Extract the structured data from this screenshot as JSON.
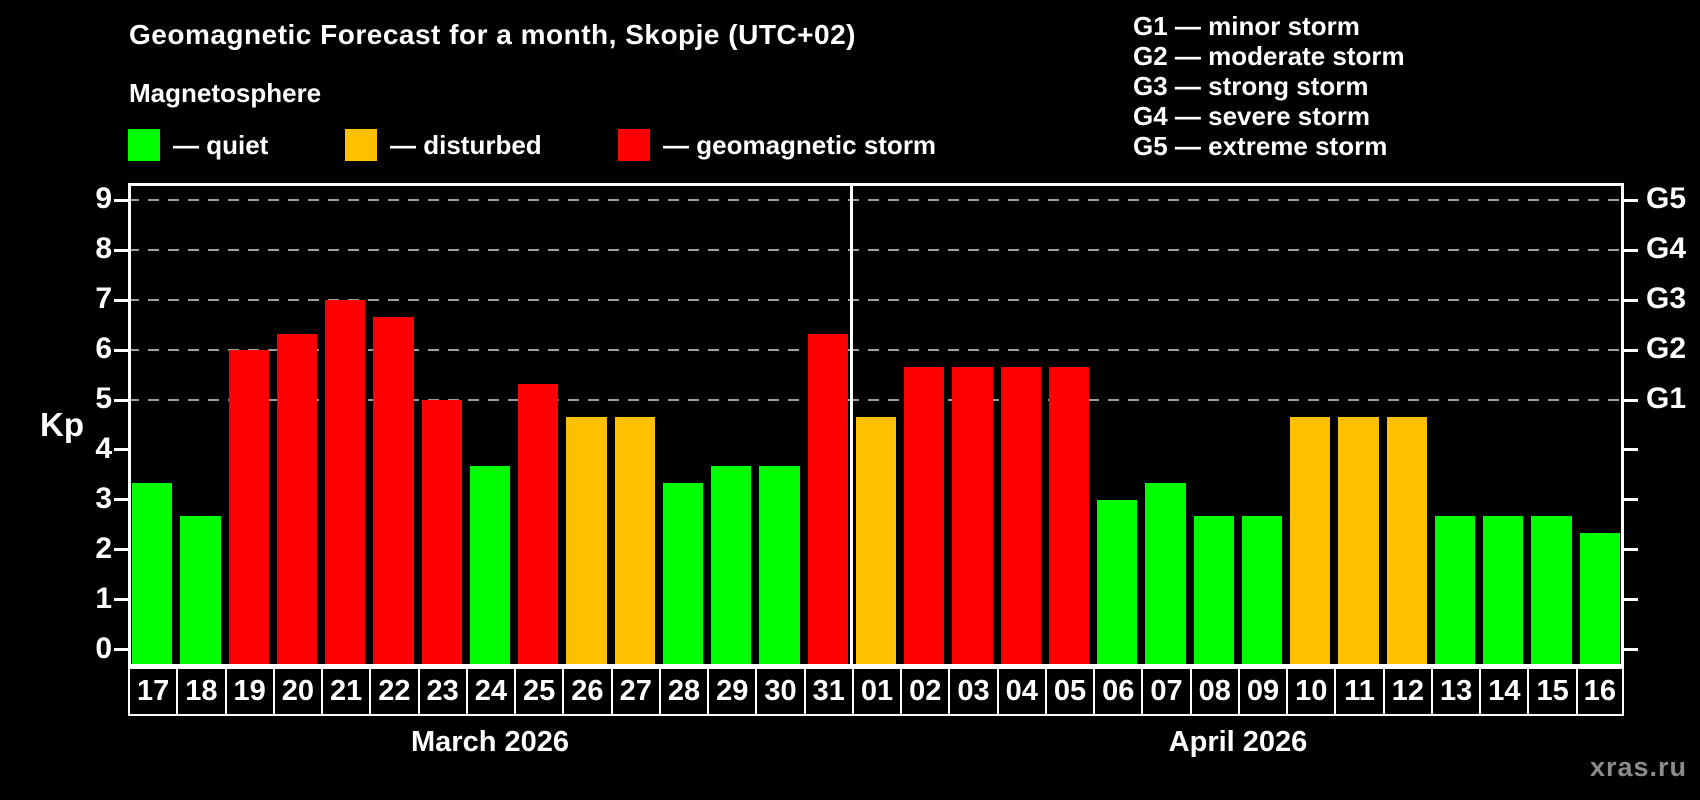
{
  "title": "Geomagnetic Forecast for a month, Skopje (UTC+02)",
  "subtitle": "Magnetosphere",
  "legend": {
    "quiet": "— quiet",
    "disturbed": "— disturbed",
    "storm": "— geomagnetic storm"
  },
  "g_legend": [
    "G1 — minor storm",
    "G2 — moderate storm",
    "G3 — strong storm",
    "G4 — severe storm",
    "G5 — extreme storm"
  ],
  "watermark": "xras.ru",
  "colors": {
    "quiet": "#00ff00",
    "disturbed": "#ffc000",
    "storm": "#ff0000",
    "grid": "#a0a0a0",
    "axis": "#ffffff",
    "background": "#000000",
    "watermark": "#8c8c8c"
  },
  "chart_data": {
    "type": "bar",
    "ylabel": "Kp",
    "ylim": [
      -0.35,
      9.35
    ],
    "y_ticks": [
      0,
      1,
      2,
      3,
      4,
      5,
      6,
      7,
      8,
      9
    ],
    "gridlines": [
      5,
      6,
      7,
      8,
      9
    ],
    "grid_style": "dashed",
    "legend_position": "top",
    "right_axis": [
      {
        "kp": 5,
        "label": "G1"
      },
      {
        "kp": 6,
        "label": "G2"
      },
      {
        "kp": 7,
        "label": "G3"
      },
      {
        "kp": 8,
        "label": "G4"
      },
      {
        "kp": 9,
        "label": "G5"
      }
    ],
    "months": [
      {
        "label": "March 2026",
        "days": [
          {
            "day": "17",
            "kp": 3.33,
            "status": "quiet"
          },
          {
            "day": "18",
            "kp": 2.67,
            "status": "quiet"
          },
          {
            "day": "19",
            "kp": 6.0,
            "status": "storm"
          },
          {
            "day": "20",
            "kp": 6.33,
            "status": "storm"
          },
          {
            "day": "21",
            "kp": 7.0,
            "status": "storm"
          },
          {
            "day": "22",
            "kp": 6.67,
            "status": "storm"
          },
          {
            "day": "23",
            "kp": 5.0,
            "status": "storm"
          },
          {
            "day": "24",
            "kp": 3.67,
            "status": "quiet"
          },
          {
            "day": "25",
            "kp": 5.33,
            "status": "storm"
          },
          {
            "day": "26",
            "kp": 4.67,
            "status": "disturbed"
          },
          {
            "day": "27",
            "kp": 4.67,
            "status": "disturbed"
          },
          {
            "day": "28",
            "kp": 3.33,
            "status": "quiet"
          },
          {
            "day": "29",
            "kp": 3.67,
            "status": "quiet"
          },
          {
            "day": "30",
            "kp": 3.67,
            "status": "quiet"
          },
          {
            "day": "31",
            "kp": 6.33,
            "status": "storm"
          }
        ]
      },
      {
        "label": "April 2026",
        "days": [
          {
            "day": "01",
            "kp": 4.67,
            "status": "disturbed"
          },
          {
            "day": "02",
            "kp": 5.67,
            "status": "storm"
          },
          {
            "day": "03",
            "kp": 5.67,
            "status": "storm"
          },
          {
            "day": "04",
            "kp": 5.67,
            "status": "storm"
          },
          {
            "day": "05",
            "kp": 5.67,
            "status": "storm"
          },
          {
            "day": "06",
            "kp": 3.0,
            "status": "quiet"
          },
          {
            "day": "07",
            "kp": 3.33,
            "status": "quiet"
          },
          {
            "day": "08",
            "kp": 2.67,
            "status": "quiet"
          },
          {
            "day": "09",
            "kp": 2.67,
            "status": "quiet"
          },
          {
            "day": "10",
            "kp": 4.67,
            "status": "disturbed"
          },
          {
            "day": "11",
            "kp": 4.67,
            "status": "disturbed"
          },
          {
            "day": "12",
            "kp": 4.67,
            "status": "disturbed"
          },
          {
            "day": "13",
            "kp": 2.67,
            "status": "quiet"
          },
          {
            "day": "14",
            "kp": 2.67,
            "status": "quiet"
          },
          {
            "day": "15",
            "kp": 2.67,
            "status": "quiet"
          },
          {
            "day": "16",
            "kp": 2.33,
            "status": "quiet"
          }
        ]
      }
    ]
  }
}
